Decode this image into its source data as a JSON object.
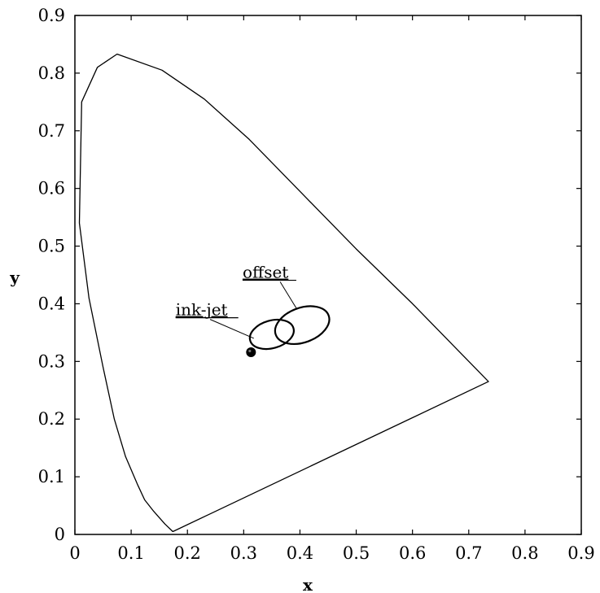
{
  "chart_data": {
    "type": "scatter",
    "xlabel": "x",
    "ylabel": "y",
    "xlim": [
      0,
      0.9
    ],
    "ylim": [
      0,
      0.9
    ],
    "x_ticks": [
      "0",
      "0.1",
      "0.2",
      "0.3",
      "0.4",
      "0.5",
      "0.6",
      "0.7",
      "0.8",
      "0.9"
    ],
    "y_ticks": [
      "0",
      "0.1",
      "0.2",
      "0.3",
      "0.4",
      "0.5",
      "0.6",
      "0.7",
      "0.8",
      "0.9"
    ],
    "grid": false,
    "series": [
      {
        "kind": "outline",
        "points": [
          [
            0.174,
            0.005
          ],
          [
            0.16,
            0.018
          ],
          [
            0.14,
            0.04
          ],
          [
            0.124,
            0.06
          ],
          [
            0.112,
            0.085
          ],
          [
            0.09,
            0.135
          ],
          [
            0.07,
            0.2
          ],
          [
            0.05,
            0.29
          ],
          [
            0.025,
            0.41
          ],
          [
            0.008,
            0.54
          ],
          [
            0.012,
            0.75
          ],
          [
            0.04,
            0.81
          ],
          [
            0.075,
            0.833
          ],
          [
            0.155,
            0.805
          ],
          [
            0.23,
            0.755
          ],
          [
            0.31,
            0.685
          ],
          [
            0.4,
            0.595
          ],
          [
            0.5,
            0.495
          ],
          [
            0.6,
            0.4
          ],
          [
            0.735,
            0.265
          ],
          [
            0.174,
            0.005
          ]
        ]
      },
      {
        "kind": "ellipse",
        "label": "ink-jet",
        "center": [
          0.35,
          0.347
        ],
        "rx": 0.04,
        "ry": 0.024,
        "rotation_deg": 16
      },
      {
        "kind": "ellipse",
        "label": "offset",
        "center": [
          0.404,
          0.363
        ],
        "rx": 0.05,
        "ry": 0.03,
        "rotation_deg": 20
      },
      {
        "kind": "point",
        "x": 0.313,
        "y": 0.316
      }
    ],
    "annotations": [
      {
        "text": "ink-jet",
        "x": 0.179,
        "y": 0.38,
        "line_to": [
          0.318,
          0.34
        ]
      },
      {
        "text": "offset",
        "x": 0.298,
        "y": 0.445,
        "line_to": [
          0.395,
          0.39
        ]
      }
    ]
  }
}
